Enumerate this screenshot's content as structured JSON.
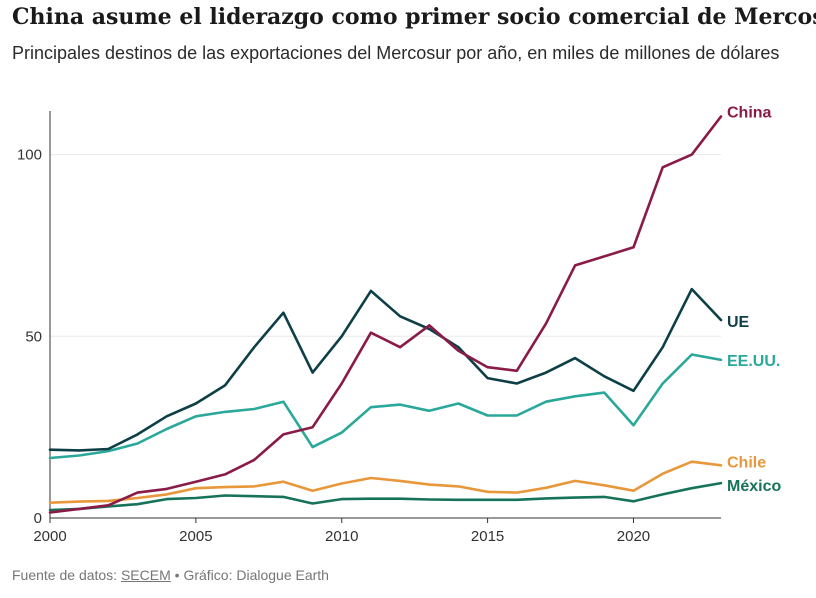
{
  "title": "China asume el liderazgo como primer socio comercial de Mercosur",
  "subtitle": "Principales destinos de las exportaciones del Mercosur por año, en miles de millones de dólares",
  "footer": {
    "prefix": "Fuente de datos: ",
    "source_link": "SECEM",
    "suffix": " • Gráfico: Dialogue Earth"
  },
  "chart_data": {
    "type": "line",
    "xlim": [
      2000,
      2023
    ],
    "ylim": [
      0,
      112
    ],
    "x_ticks": [
      2000,
      2005,
      2010,
      2015,
      2020
    ],
    "y_ticks": [
      0,
      50,
      100
    ],
    "grid": "horizontal",
    "x": [
      2000,
      2001,
      2002,
      2003,
      2004,
      2005,
      2006,
      2007,
      2008,
      2009,
      2010,
      2011,
      2012,
      2013,
      2014,
      2015,
      2016,
      2017,
      2018,
      2019,
      2020,
      2021,
      2022,
      2023
    ],
    "series": [
      {
        "name": "China",
        "color": "#8a1a48",
        "values": [
          1.5,
          2.5,
          3.5,
          7,
          8,
          10,
          12,
          16,
          23,
          25,
          37,
          51,
          47,
          53,
          46,
          41.5,
          40.5,
          53.5,
          69.5,
          72,
          74.5,
          96.5,
          100,
          110.5
        ]
      },
      {
        "name": "UE",
        "color": "#0e3f47",
        "values": [
          18.8,
          18.6,
          19,
          23,
          28,
          31.5,
          36.5,
          47,
          56.5,
          40,
          50,
          62.5,
          55.5,
          52,
          47,
          38.5,
          37,
          40,
          44,
          39,
          35,
          47,
          63,
          54.5
        ]
      },
      {
        "name": "EE.UU.",
        "color": "#2aa89a",
        "values": [
          16.5,
          17.2,
          18.4,
          20.5,
          24.5,
          28,
          29.2,
          30,
          32,
          19.5,
          23.5,
          30.5,
          31.2,
          29.5,
          31.5,
          28.2,
          28.2,
          32,
          33.5,
          34.5,
          25.5,
          37,
          45,
          43.5
        ]
      },
      {
        "name": "Chile",
        "color": "#e8973a",
        "values": [
          4.2,
          4.5,
          4.7,
          5.5,
          6.5,
          8.2,
          8.5,
          8.7,
          10,
          7.5,
          9.5,
          11,
          10.2,
          9.2,
          8.7,
          7.2,
          7,
          8.3,
          10.2,
          9,
          7.5,
          12.2,
          15.5,
          14.5
        ]
      },
      {
        "name": "México",
        "color": "#16735a",
        "values": [
          2.2,
          2.5,
          3.2,
          3.8,
          5.2,
          5.5,
          6.2,
          6,
          5.8,
          4,
          5.2,
          5.3,
          5.3,
          5.1,
          5,
          5,
          5,
          5.4,
          5.6,
          5.8,
          4.6,
          6.5,
          8.2,
          9.6
        ]
      }
    ]
  }
}
